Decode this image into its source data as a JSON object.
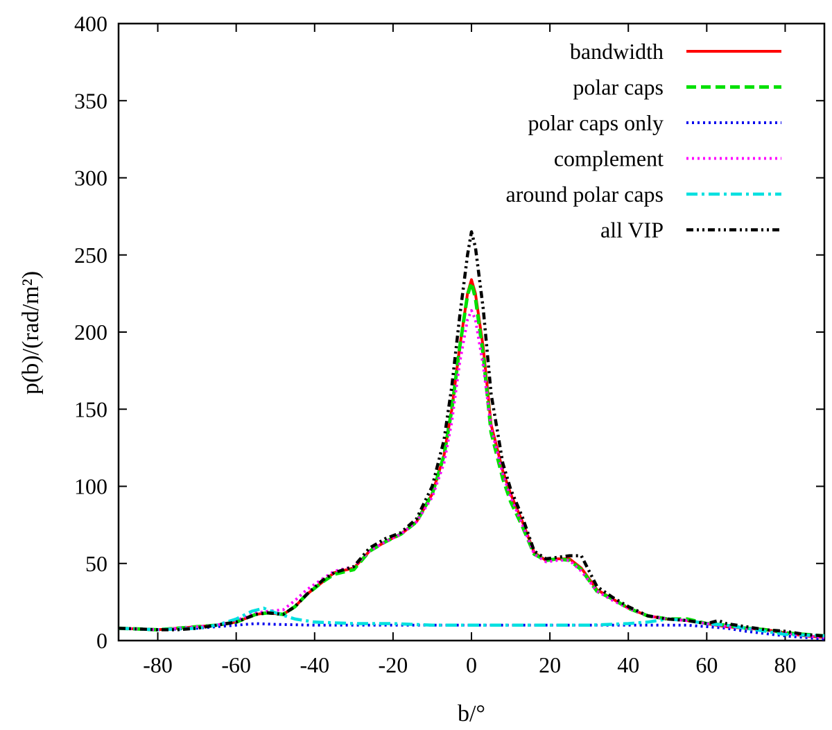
{
  "chart_data": {
    "type": "line",
    "title": "",
    "xlabel": "b/°",
    "ylabel": "p(b)/(rad/m²)",
    "xlim": [
      -90,
      90
    ],
    "ylim": [
      0,
      400
    ],
    "xticks": [
      -80,
      -60,
      -40,
      -20,
      0,
      20,
      40,
      60,
      80
    ],
    "yticks": [
      0,
      50,
      100,
      150,
      200,
      250,
      300,
      350,
      400
    ],
    "legend_position": "top-right",
    "series": [
      {
        "name": "bandwidth",
        "color": "#ff0000",
        "style": "solid",
        "x": [
          -90,
          -85,
          -80,
          -75,
          -70,
          -65,
          -60,
          -55,
          -52,
          -48,
          -45,
          -42,
          -38,
          -35,
          -30,
          -26,
          -22,
          -18,
          -14,
          -10,
          -7,
          -5,
          -3,
          -1,
          0,
          1,
          3,
          5,
          8,
          10,
          13,
          16,
          19,
          22,
          25,
          28,
          32,
          36,
          40,
          45,
          50,
          55,
          60,
          65,
          70,
          75,
          80,
          85,
          90
        ],
        "y": [
          8,
          7.5,
          7,
          8,
          9,
          10,
          12,
          17,
          18,
          17,
          22,
          30,
          38,
          44,
          47,
          58,
          64,
          69,
          77,
          95,
          120,
          150,
          190,
          225,
          234,
          225,
          190,
          140,
          110,
          95,
          77,
          57,
          52,
          53,
          53,
          47,
          33,
          27,
          21,
          16,
          14,
          13,
          11,
          9,
          8,
          7,
          5,
          3,
          2
        ]
      },
      {
        "name": "polar caps",
        "color": "#00e000",
        "style": "dashed",
        "x": [
          -90,
          -85,
          -80,
          -75,
          -70,
          -65,
          -60,
          -55,
          -52,
          -48,
          -45,
          -42,
          -38,
          -35,
          -30,
          -26,
          -22,
          -18,
          -14,
          -10,
          -7,
          -5,
          -3,
          -1,
          0,
          1,
          3,
          5,
          8,
          10,
          13,
          16,
          19,
          22,
          25,
          28,
          32,
          36,
          40,
          45,
          50,
          55,
          60,
          65,
          70,
          75,
          80,
          85,
          90
        ],
        "y": [
          8,
          7.5,
          7,
          8,
          9,
          10,
          12,
          17,
          18,
          17,
          22,
          30,
          38,
          43,
          46,
          58,
          64,
          69,
          77,
          95,
          120,
          150,
          190,
          224,
          232,
          222,
          185,
          135,
          105,
          90,
          74,
          56,
          52,
          53,
          52,
          46,
          32,
          27,
          21,
          16,
          14,
          14,
          11,
          10,
          8,
          7,
          5,
          4,
          3
        ]
      },
      {
        "name": "polar caps only",
        "color": "#0000ee",
        "style": "dotted",
        "x": [
          -90,
          -80,
          -70,
          -60,
          -55,
          -50,
          -40,
          -30,
          -20,
          -10,
          0,
          10,
          20,
          30,
          40,
          50,
          55,
          60,
          65,
          70,
          80,
          90
        ],
        "y": [
          8,
          7,
          8,
          10,
          11,
          10.5,
          10,
          10,
          10,
          10,
          10,
          10,
          10,
          10,
          10,
          10,
          10,
          9,
          8,
          6,
          3,
          1
        ]
      },
      {
        "name": "complement",
        "color": "#ff00ff",
        "style": "dotted",
        "x": [
          -90,
          -85,
          -80,
          -75,
          -70,
          -65,
          -60,
          -55,
          -52,
          -48,
          -45,
          -42,
          -38,
          -35,
          -30,
          -26,
          -22,
          -18,
          -14,
          -10,
          -7,
          -5,
          -3,
          -1,
          0,
          1,
          3,
          5,
          8,
          10,
          13,
          16,
          19,
          22,
          25,
          28,
          32,
          36,
          40,
          45,
          50,
          55,
          60,
          65,
          70,
          75,
          80,
          85,
          90
        ],
        "y": [
          8,
          7.5,
          7,
          8,
          9,
          10,
          13,
          18,
          19,
          20,
          26,
          33,
          40,
          45,
          48,
          58,
          64,
          69,
          77,
          93,
          115,
          142,
          180,
          208,
          214,
          208,
          178,
          138,
          108,
          93,
          75,
          56,
          51,
          52,
          52,
          45,
          32,
          26,
          21,
          16,
          14,
          13,
          11,
          9,
          8,
          7,
          5,
          3,
          2
        ]
      },
      {
        "name": "around polar caps",
        "color": "#00e0e0",
        "style": "dashdot",
        "x": [
          -90,
          -80,
          -70,
          -65,
          -60,
          -56,
          -53,
          -50,
          -45,
          -40,
          -30,
          -20,
          -10,
          0,
          10,
          20,
          30,
          40,
          45,
          50,
          55,
          60,
          65,
          70,
          80,
          90
        ],
        "y": [
          8,
          7,
          8,
          10,
          14,
          19,
          21,
          18,
          14,
          12,
          11,
          11,
          10,
          10,
          10,
          10,
          10,
          11,
          12,
          14,
          13,
          11,
          10,
          8,
          4,
          3
        ]
      },
      {
        "name": "all VIP",
        "color": "#000000",
        "style": "dashdotdot",
        "x": [
          -90,
          -85,
          -80,
          -75,
          -70,
          -65,
          -60,
          -55,
          -52,
          -48,
          -45,
          -42,
          -38,
          -35,
          -30,
          -26,
          -22,
          -18,
          -14,
          -10,
          -7,
          -5,
          -3,
          -1,
          0,
          1,
          3,
          5,
          8,
          10,
          13,
          16,
          19,
          22,
          25,
          28,
          32,
          36,
          40,
          45,
          50,
          55,
          60,
          63,
          65,
          70,
          75,
          80,
          85,
          90
        ],
        "y": [
          8,
          7.5,
          7,
          7,
          8,
          10,
          12,
          17,
          18,
          17,
          22,
          30,
          39,
          44,
          48,
          60,
          66,
          70,
          79,
          100,
          130,
          165,
          210,
          250,
          265,
          255,
          215,
          160,
          115,
          98,
          80,
          58,
          53,
          54,
          55,
          55,
          35,
          28,
          22,
          16,
          14,
          13,
          11,
          13,
          11,
          9,
          7,
          6,
          4,
          3
        ]
      }
    ]
  }
}
